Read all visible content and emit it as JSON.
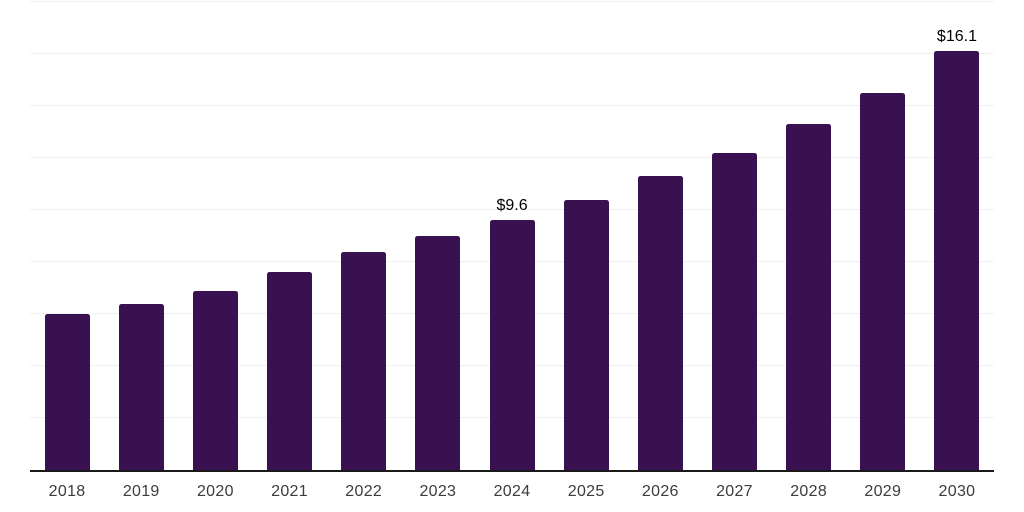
{
  "chart_data": {
    "type": "bar",
    "categories": [
      "2018",
      "2019",
      "2020",
      "2021",
      "2022",
      "2023",
      "2024",
      "2025",
      "2026",
      "2027",
      "2028",
      "2029",
      "2030"
    ],
    "values": [
      6.0,
      6.4,
      6.9,
      7.6,
      8.4,
      9.0,
      9.6,
      10.4,
      11.3,
      12.2,
      13.3,
      14.5,
      16.1
    ],
    "data_labels": [
      null,
      null,
      null,
      null,
      null,
      null,
      "$9.6",
      null,
      null,
      null,
      null,
      null,
      "$16.1"
    ],
    "title": "",
    "xlabel": "",
    "ylabel": "",
    "ylim": [
      0,
      18
    ],
    "grid_step": 2,
    "grid": true,
    "legend": "none",
    "y_axis_labels_shown": false,
    "colors": {
      "bar": "#391150",
      "axis_line": "#1a1a1a",
      "gridline": "#f0f0f0",
      "data_label": "#000000",
      "tick_label": "#3c3c3c",
      "background": "#ffffff"
    }
  }
}
